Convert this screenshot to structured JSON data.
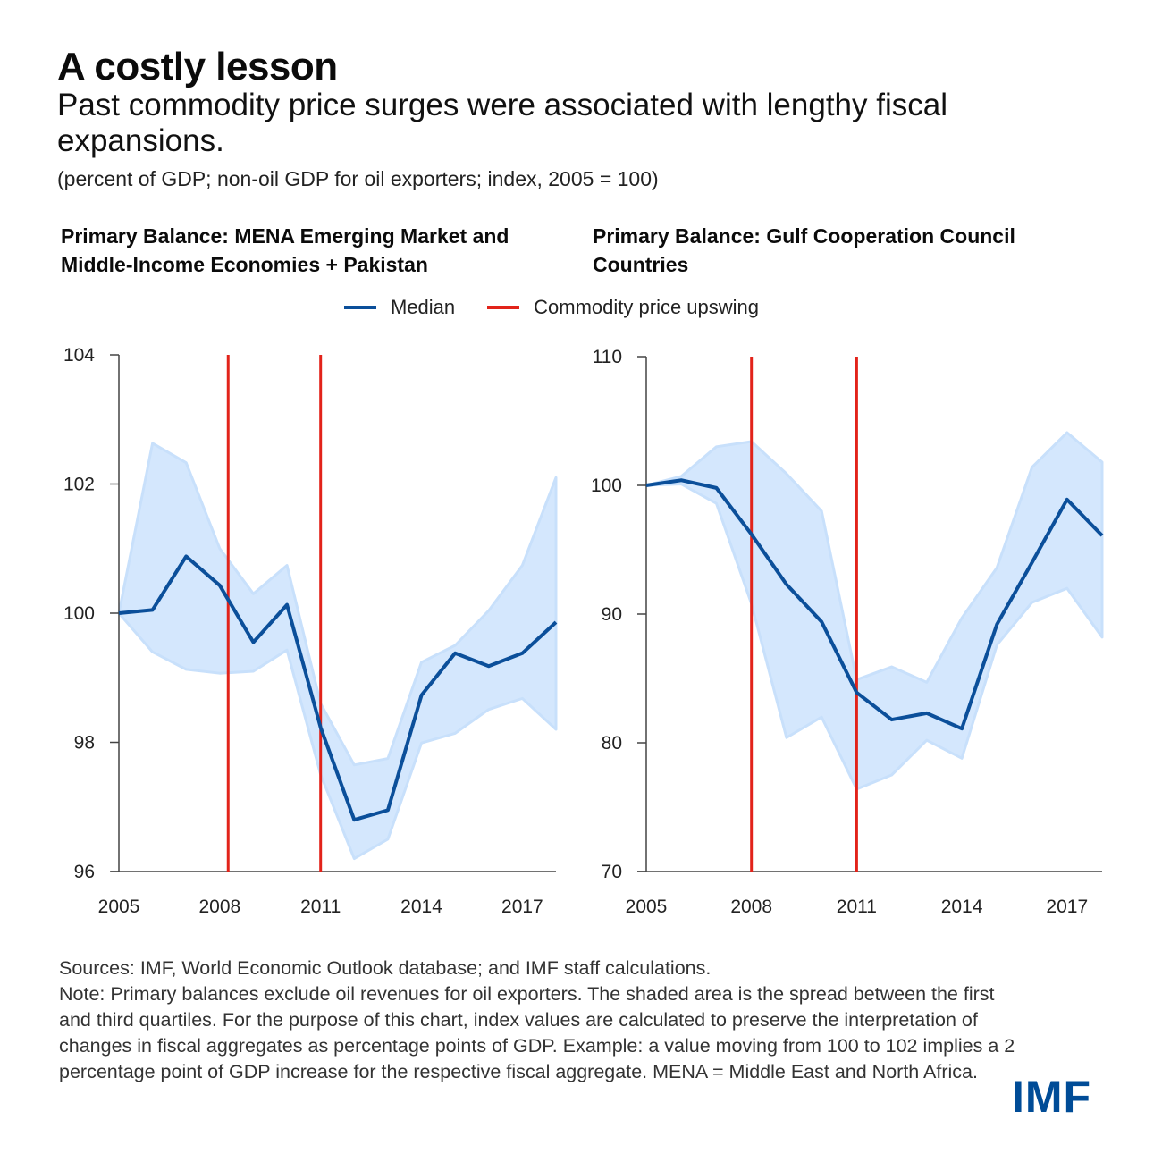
{
  "header": {
    "title": "A costly lesson",
    "subtitle": "Past commodity price surges were associated with lengthy fiscal expansions.",
    "units": "(percent of GDP; non-oil GDP for oil exporters; index, 2005 = 100)"
  },
  "legend": {
    "median_label": "Median",
    "upswing_label": "Commodity price upswing",
    "median_color": "#0b4f9a",
    "upswing_color": "#e2231a",
    "band_color": "#d4e7fd"
  },
  "footer": {
    "sources": "Sources: IMF, World Economic Outlook database; and IMF staff calculations.",
    "note": "Note: Primary balances exclude oil revenues for oil exporters. The shaded area is the spread between the first and third quartiles. For the purpose of this chart, index values are calculated to preserve the interpretation of changes in fiscal aggregates as percentage points of GDP. Example: a value moving from 100 to 102 implies a 2 percentage point of GDP increase for the respective fiscal aggregate. MENA = Middle East and North Africa.",
    "logo": "IMF"
  },
  "chart_data": [
    {
      "type": "line",
      "title": "Primary Balance: MENA Emerging Market and Middle-Income Economies + Pakistan",
      "xlabel": "",
      "ylabel": "",
      "x": [
        2005,
        2006,
        2007,
        2008,
        2009,
        2010,
        2011,
        2012,
        2013,
        2014,
        2015,
        2016,
        2017,
        2018
      ],
      "xlim": [
        2005,
        2018
      ],
      "xticks": [
        "2005",
        "2008",
        "2011",
        "2014",
        "2017"
      ],
      "xtick_values": [
        2005,
        2008,
        2011,
        2014,
        2017
      ],
      "ylim": [
        96,
        104
      ],
      "yticks": [
        "96",
        "98",
        "100",
        "102",
        "104"
      ],
      "ytick_values": [
        96,
        98,
        100,
        102,
        104
      ],
      "grid": false,
      "series": [
        {
          "name": "Median",
          "values": [
            100.0,
            100.05,
            100.88,
            100.43,
            99.55,
            100.13,
            98.23,
            96.8,
            96.95,
            98.73,
            99.38,
            99.18,
            99.38,
            99.86
          ]
        },
        {
          "name": "Third quartile",
          "values": [
            100.0,
            102.63,
            102.33,
            101.0,
            100.3,
            100.74,
            98.6,
            97.65,
            97.75,
            99.24,
            99.5,
            100.04,
            100.74,
            102.1
          ]
        },
        {
          "name": "First quartile",
          "values": [
            100.0,
            99.4,
            99.13,
            99.07,
            99.1,
            99.43,
            97.5,
            96.2,
            96.5,
            97.99,
            98.14,
            98.51,
            98.68,
            98.2
          ]
        }
      ],
      "upswing_lines": [
        2008.25,
        2011.0
      ]
    },
    {
      "type": "line",
      "title": "Primary Balance: Gulf Cooperation Council Countries",
      "xlabel": "",
      "ylabel": "",
      "x": [
        2005,
        2006,
        2007,
        2008,
        2009,
        2010,
        2011,
        2012,
        2013,
        2014,
        2015,
        2016,
        2017,
        2018
      ],
      "xlim": [
        2005,
        2018
      ],
      "xticks": [
        "2005",
        "2008",
        "2011",
        "2014",
        "2017"
      ],
      "xtick_values": [
        2005,
        2008,
        2011,
        2014,
        2017
      ],
      "ylim": [
        70,
        110
      ],
      "yticks": [
        "70",
        "80",
        "90",
        "100",
        "110"
      ],
      "ytick_values": [
        70,
        80,
        90,
        100,
        110
      ],
      "grid": false,
      "series": [
        {
          "name": "Median",
          "values": [
            100.0,
            100.4,
            99.8,
            96.2,
            92.3,
            89.4,
            83.9,
            81.8,
            82.3,
            81.1,
            89.2,
            94.0,
            98.9,
            96.1
          ]
        },
        {
          "name": "Third quartile",
          "values": [
            100.0,
            100.7,
            103.0,
            103.4,
            100.9,
            98.0,
            84.9,
            85.9,
            84.7,
            89.7,
            93.6,
            101.4,
            104.1,
            101.8
          ]
        },
        {
          "name": "First quartile",
          "values": [
            100.0,
            100.1,
            98.6,
            90.8,
            80.4,
            82.0,
            76.4,
            77.5,
            80.2,
            78.8,
            87.6,
            90.9,
            92.0,
            88.2
          ]
        }
      ],
      "upswing_lines": [
        2008.0,
        2011.0
      ]
    }
  ]
}
